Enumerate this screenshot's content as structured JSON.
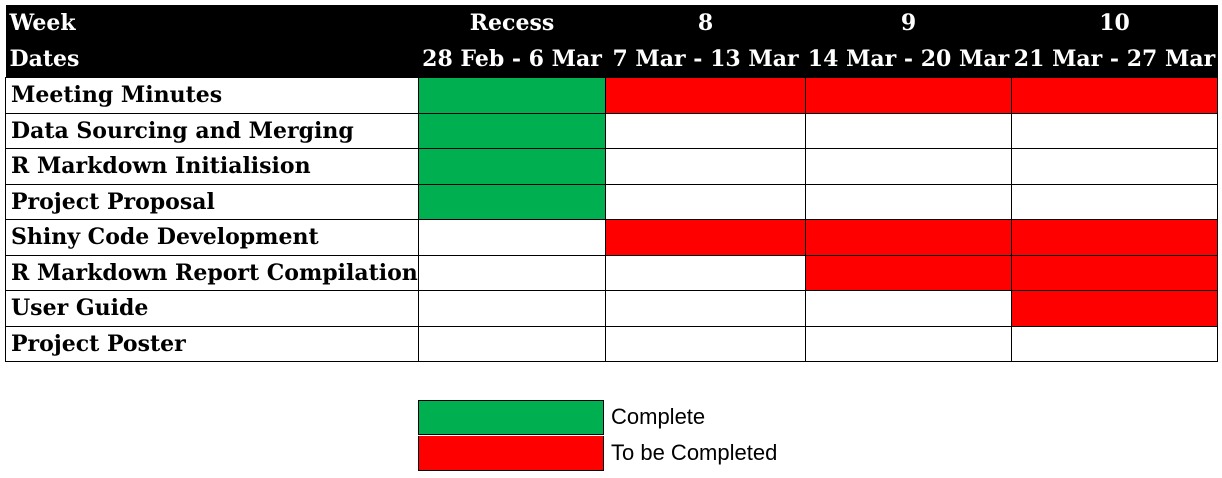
{
  "colors": {
    "complete": "#00b050",
    "to_be_completed": "#ff0000",
    "empty": "#ffffff"
  },
  "header": {
    "week_label": "Week",
    "dates_label": "Dates",
    "weeks": [
      {
        "week": "Recess",
        "dates": "28 Feb - 6 Mar"
      },
      {
        "week": "8",
        "dates": "7 Mar - 13 Mar"
      },
      {
        "week": "9",
        "dates": "14 Mar - 20 Mar"
      },
      {
        "week": "10",
        "dates": "21 Mar - 27 Mar"
      }
    ]
  },
  "tasks": [
    {
      "name": "Meeting Minutes",
      "status": [
        "complete",
        "to_be_completed",
        "to_be_completed",
        "to_be_completed"
      ]
    },
    {
      "name": "Data Sourcing and Merging",
      "status": [
        "complete",
        "empty",
        "empty",
        "empty"
      ]
    },
    {
      "name": "R Markdown Initialision",
      "status": [
        "complete",
        "empty",
        "empty",
        "empty"
      ]
    },
    {
      "name": "Project Proposal",
      "status": [
        "complete",
        "empty",
        "empty",
        "empty"
      ]
    },
    {
      "name": "Shiny Code Development",
      "status": [
        "empty",
        "to_be_completed",
        "to_be_completed",
        "to_be_completed"
      ]
    },
    {
      "name": "R Markdown Report Compilation",
      "status": [
        "empty",
        "empty",
        "to_be_completed",
        "to_be_completed"
      ]
    },
    {
      "name": "User Guide",
      "status": [
        "empty",
        "empty",
        "empty",
        "to_be_completed"
      ]
    },
    {
      "name": "Project Poster",
      "status": [
        "empty",
        "empty",
        "empty",
        "empty"
      ]
    }
  ],
  "legend": [
    {
      "key": "complete",
      "label": "Complete"
    },
    {
      "key": "to_be_completed",
      "label": "To be Completed"
    }
  ]
}
